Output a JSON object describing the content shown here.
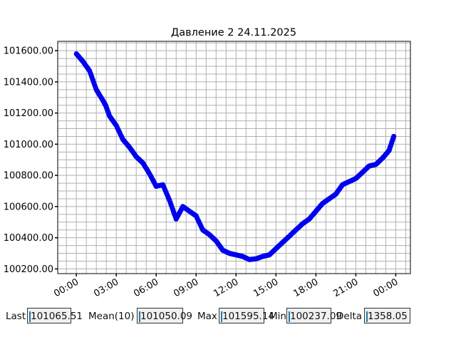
{
  "chart_data": {
    "type": "scatter",
    "title": "Давление 2 24.11.2025",
    "xlabel": "",
    "ylabel": "",
    "x_unit": "hours",
    "xlim": [
      -1.4,
      25.1
    ],
    "ylim": [
      100170,
      101660
    ],
    "x_ticks": [
      0,
      3,
      6,
      9,
      12,
      15,
      18,
      21,
      24
    ],
    "x_tick_labels": [
      "00:00",
      "03:00",
      "06:00",
      "09:00",
      "12:00",
      "15:00",
      "18:00",
      "21:00",
      "00:00"
    ],
    "y_ticks": [
      100200,
      100400,
      100600,
      100800,
      101000,
      101200,
      101400,
      101600
    ],
    "y_tick_labels": [
      "100200.00",
      "100400.00",
      "100600.00",
      "100800.00",
      "101000.00",
      "101200.00",
      "101400.00",
      "101600.00"
    ],
    "grid": true,
    "color": "#0000ee",
    "series": [
      {
        "x": [
          0,
          0.5,
          1,
          1.5,
          2,
          2.2,
          2.5,
          3,
          3.5,
          4,
          4.5,
          5,
          5.5,
          6,
          6.5,
          7,
          7.5,
          8,
          8.5,
          9,
          9.5,
          10,
          10.5,
          11,
          11.5,
          12,
          12.5,
          13,
          13.5,
          14,
          14.5,
          15,
          15.5,
          16,
          16.5,
          17,
          17.5,
          18,
          18.5,
          19,
          19.5,
          20,
          20.5,
          21,
          21.5,
          22,
          22.5,
          23,
          23.5,
          23.85
        ],
        "y": [
          101580,
          101530,
          101470,
          101350,
          101280,
          101250,
          101180,
          101120,
          101030,
          100980,
          100920,
          100880,
          100810,
          100730,
          100740,
          100640,
          100520,
          100600,
          100570,
          100540,
          100450,
          100420,
          100380,
          100320,
          100300,
          100290,
          100280,
          100260,
          100265,
          100280,
          100290,
          100330,
          100370,
          100410,
          100450,
          100490,
          100520,
          100570,
          100620,
          100650,
          100680,
          100740,
          100760,
          100780,
          100820,
          100860,
          100870,
          100910,
          100960,
          101050
        ]
      }
    ]
  },
  "stats": {
    "last_label": "Last",
    "last_value": "101065.51",
    "mean_label": "Mean(10)",
    "mean_value": "101050.09",
    "max_label": "Max",
    "max_value": "101595.14",
    "min_label": "Min",
    "min_value": "100237.09",
    "delta_label": "Delta",
    "delta_value": "1358.05"
  }
}
